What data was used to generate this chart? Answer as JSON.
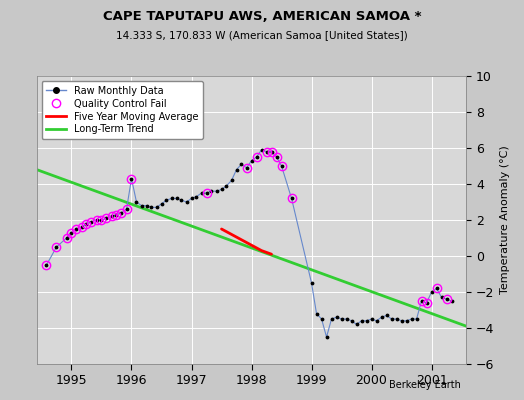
{
  "title": "CAPE TAPUTAPU AWS, AMERICAN SAMOA *",
  "subtitle": "14.333 S, 170.833 W (American Samoa [United States])",
  "ylabel": "Temperature Anomaly (°C)",
  "credit": "Berkeley Earth",
  "ylim": [
    -6,
    10
  ],
  "yticks": [
    -6,
    -4,
    -2,
    0,
    2,
    4,
    6,
    8,
    10
  ],
  "xlim_start": 1994.42,
  "xlim_end": 2001.58,
  "fig_bg_color": "#c8c8c8",
  "plot_bg_color": "#d8d8d8",
  "raw_x": [
    1994.583,
    1994.75,
    1994.917,
    1995.0,
    1995.083,
    1995.167,
    1995.25,
    1995.333,
    1995.417,
    1995.5,
    1995.583,
    1995.667,
    1995.75,
    1995.833,
    1995.917,
    1996.0,
    1996.083,
    1996.167,
    1996.25,
    1996.333,
    1996.417,
    1996.5,
    1996.583,
    1996.667,
    1996.75,
    1996.833,
    1996.917,
    1997.0,
    1997.083,
    1997.167,
    1997.25,
    1997.333,
    1997.417,
    1997.5,
    1997.583,
    1997.667,
    1997.75,
    1997.833,
    1997.917,
    1998.0,
    1998.083,
    1998.167,
    1998.25,
    1998.333,
    1998.417,
    1998.5,
    1998.667,
    1999.0,
    1999.083,
    1999.167,
    1999.25,
    1999.333,
    1999.417,
    1999.5,
    1999.583,
    1999.667,
    1999.75,
    1999.833,
    1999.917,
    2000.0,
    2000.083,
    2000.167,
    2000.25,
    2000.333,
    2000.417,
    2000.5,
    2000.583,
    2000.667,
    2000.75,
    2000.833,
    2000.917,
    2001.0,
    2001.083,
    2001.167,
    2001.25,
    2001.333
  ],
  "raw_y": [
    -0.5,
    0.5,
    1.0,
    1.3,
    1.5,
    1.6,
    1.8,
    1.9,
    2.0,
    2.0,
    2.1,
    2.2,
    2.3,
    2.4,
    2.6,
    4.3,
    3.0,
    2.8,
    2.8,
    2.7,
    2.7,
    2.9,
    3.1,
    3.2,
    3.2,
    3.1,
    3.0,
    3.2,
    3.3,
    3.5,
    3.5,
    3.6,
    3.6,
    3.7,
    3.9,
    4.2,
    4.8,
    5.1,
    4.9,
    5.3,
    5.5,
    5.9,
    5.8,
    5.8,
    5.5,
    5.0,
    3.2,
    -1.5,
    -3.2,
    -3.5,
    -4.5,
    -3.5,
    -3.4,
    -3.5,
    -3.5,
    -3.6,
    -3.8,
    -3.6,
    -3.6,
    -3.5,
    -3.6,
    -3.4,
    -3.3,
    -3.5,
    -3.5,
    -3.6,
    -3.6,
    -3.5,
    -3.5,
    -2.5,
    -2.6,
    -2.0,
    -1.8,
    -2.3,
    -2.4,
    -2.5
  ],
  "qc_fail_x": [
    1994.583,
    1994.75,
    1994.917,
    1995.0,
    1995.083,
    1995.167,
    1995.25,
    1995.333,
    1995.417,
    1995.5,
    1995.583,
    1995.667,
    1995.75,
    1995.833,
    1995.917,
    1996.0,
    1997.25,
    1997.917,
    1998.083,
    1998.25,
    1998.333,
    1998.417,
    1998.5,
    1998.667,
    2000.833,
    2000.917,
    2001.083,
    2001.25
  ],
  "qc_fail_y": [
    -0.5,
    0.5,
    1.0,
    1.3,
    1.5,
    1.6,
    1.8,
    1.9,
    2.0,
    2.0,
    2.1,
    2.2,
    2.3,
    2.4,
    2.6,
    4.3,
    3.5,
    4.9,
    5.5,
    5.8,
    5.8,
    5.5,
    5.0,
    3.2,
    -2.5,
    -2.6,
    -1.8,
    -2.4
  ],
  "moving_avg_x": [
    1997.5,
    1997.667,
    1997.833,
    1998.0,
    1998.167,
    1998.333
  ],
  "moving_avg_y": [
    1.5,
    1.2,
    0.9,
    0.6,
    0.3,
    0.1
  ],
  "trend_x": [
    1994.42,
    2001.58
  ],
  "trend_y": [
    4.8,
    -3.9
  ]
}
